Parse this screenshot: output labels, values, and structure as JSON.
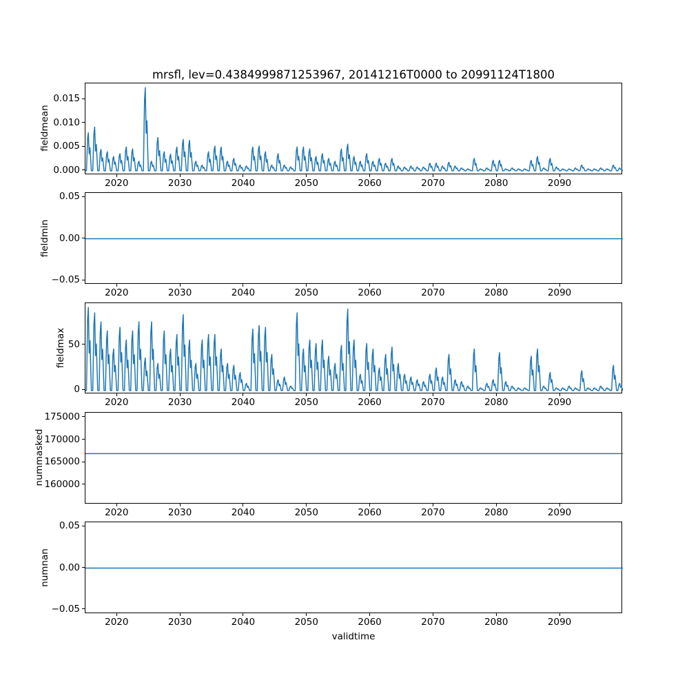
{
  "figure": {
    "title": "mrsfl, lev=0.4384999871253967, 20141216T0000 to 20991124T1800",
    "xlabel": "validtime",
    "line_color": "#1f77b4",
    "axes_edge_color": "#000000",
    "text_color": "#000000",
    "background_color": "#ffffff"
  },
  "chart_data": [
    {
      "type": "line",
      "panel": "fieldmean",
      "ylabel": "fieldmean",
      "series_style": "annual-spikes",
      "legend": "off",
      "grid": "off",
      "xlim": [
        2014.96,
        2099.9
      ],
      "ylim": [
        -0.000875,
        0.018375
      ],
      "xticks": [
        2020,
        2030,
        2040,
        2050,
        2060,
        2070,
        2080,
        2090
      ],
      "xtick_labels": [
        "2020",
        "2030",
        "2040",
        "2050",
        "2060",
        "2070",
        "2080",
        "2090"
      ],
      "yticks": [
        0.0,
        0.005,
        0.01,
        0.015
      ],
      "ytick_labels": [
        "0.000",
        "0.005",
        "0.010",
        "0.015"
      ],
      "year_start": 2015,
      "peaks": [
        0.008,
        0.0092,
        0.0045,
        0.004,
        0.003,
        0.0036,
        0.005,
        0.0046,
        0.002,
        0.0175,
        0.002,
        0.007,
        0.004,
        0.0035,
        0.005,
        0.0066,
        0.0064,
        0.002,
        0.0012,
        0.004,
        0.0052,
        0.005,
        0.002,
        0.0026,
        0.0012,
        0.001,
        0.005,
        0.0052,
        0.004,
        0.0012,
        0.0036,
        0.0012,
        0.0008,
        0.005,
        0.005,
        0.0046,
        0.003,
        0.0036,
        0.0026,
        0.002,
        0.0046,
        0.0056,
        0.003,
        0.002,
        0.0036,
        0.002,
        0.0026,
        0.0016,
        0.0026,
        0.001,
        0.0008,
        0.001,
        0.0008,
        0.0008,
        0.0016,
        0.0016,
        0.001,
        0.0018,
        0.001,
        0.0006,
        0.0004,
        0.0026,
        0.0004,
        0.0006,
        0.0022,
        0.0022,
        0.0004,
        0.0006,
        0.0004,
        0.0004,
        0.0022,
        0.003,
        0.0006,
        0.0026,
        0.0008,
        0.0004,
        0.0004,
        0.0006,
        0.0012,
        0.0004,
        0.0004,
        0.0006,
        0.0004,
        0.0012,
        0.0006
      ]
    },
    {
      "type": "line",
      "panel": "fieldmin",
      "ylabel": "fieldmin",
      "series_style": "constant",
      "value": 0.0,
      "grid": "off",
      "xlim": [
        2014.96,
        2099.9
      ],
      "ylim": [
        -0.055,
        0.055
      ],
      "xticks": [
        2020,
        2030,
        2040,
        2050,
        2060,
        2070,
        2080,
        2090
      ],
      "xtick_labels": [
        "2020",
        "2030",
        "2040",
        "2050",
        "2060",
        "2070",
        "2080",
        "2090"
      ],
      "yticks": [
        -0.05,
        0.0,
        0.05
      ],
      "ytick_labels": [
        "−0.05",
        "0.00",
        "0.05"
      ]
    },
    {
      "type": "line",
      "panel": "fieldmax",
      "ylabel": "fieldmax",
      "series_style": "annual-spikes",
      "grid": "off",
      "xlim": [
        2014.96,
        2099.9
      ],
      "ylim": [
        -4.6,
        96.6
      ],
      "xticks": [
        2020,
        2030,
        2040,
        2050,
        2060,
        2070,
        2080,
        2090
      ],
      "xtick_labels": [
        "2020",
        "2030",
        "2040",
        "2050",
        "2060",
        "2070",
        "2080",
        "2090"
      ],
      "yticks": [
        0,
        50
      ],
      "ytick_labels": [
        "0",
        "50"
      ],
      "year_start": 2015,
      "peaks": [
        92,
        86,
        76,
        66,
        46,
        70,
        56,
        66,
        76,
        36,
        76,
        30,
        66,
        46,
        62,
        84,
        56,
        30,
        56,
        62,
        62,
        46,
        30,
        28,
        20,
        8,
        68,
        72,
        70,
        40,
        12,
        15,
        5,
        86,
        46,
        56,
        52,
        56,
        38,
        30,
        50,
        90,
        56,
        18,
        52,
        46,
        25,
        40,
        48,
        30,
        18,
        15,
        12,
        10,
        18,
        25,
        15,
        40,
        12,
        10,
        5,
        46,
        3,
        8,
        12,
        42,
        10,
        5,
        3,
        3,
        38,
        46,
        5,
        20,
        3,
        3,
        5,
        3,
        22,
        3,
        3,
        5,
        3,
        28,
        8
      ]
    },
    {
      "type": "line",
      "panel": "nummasked",
      "ylabel": "nummasked",
      "series_style": "constant",
      "value": 167000,
      "grid": "off",
      "xlim": [
        2014.96,
        2099.9
      ],
      "ylim": [
        155750,
        176080
      ],
      "xticks": [
        2020,
        2030,
        2040,
        2050,
        2060,
        2070,
        2080,
        2090
      ],
      "xtick_labels": [
        "2020",
        "2030",
        "2040",
        "2050",
        "2060",
        "2070",
        "2080",
        "2090"
      ],
      "yticks": [
        160000,
        165000,
        170000,
        175000
      ],
      "ytick_labels": [
        "160000",
        "165000",
        "170000",
        "175000"
      ]
    },
    {
      "type": "line",
      "panel": "numnan",
      "ylabel": "numnan",
      "series_style": "constant",
      "value": 0.0,
      "grid": "off",
      "xlim": [
        2014.96,
        2099.9
      ],
      "ylim": [
        -0.055,
        0.055
      ],
      "xticks": [
        2020,
        2030,
        2040,
        2050,
        2060,
        2070,
        2080,
        2090
      ],
      "xtick_labels": [
        "2020",
        "2030",
        "2040",
        "2050",
        "2060",
        "2070",
        "2080",
        "2090"
      ],
      "yticks": [
        -0.05,
        0.0,
        0.05
      ],
      "ytick_labels": [
        "−0.05",
        "0.00",
        "0.05"
      ]
    }
  ]
}
